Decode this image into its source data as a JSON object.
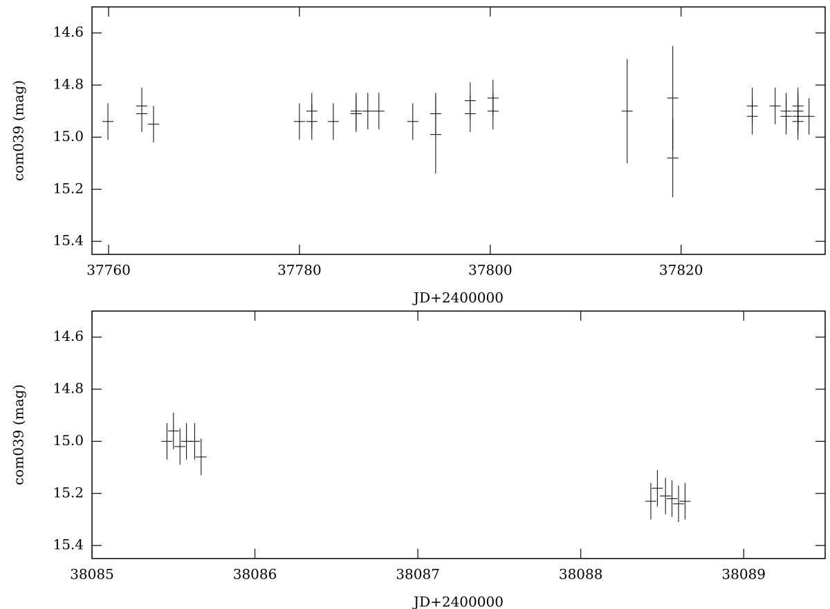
{
  "chart_data": [
    {
      "type": "scatter",
      "xlabel": "JD+2400000",
      "ylabel": "com039  (mag)",
      "x": [
        37759.93,
        37763.48,
        37763.48,
        37764.71,
        37780.0,
        37781.3,
        37781.3,
        37783.55,
        37785.94,
        37785.94,
        37787.17,
        37788.33,
        37791.88,
        37794.28,
        37794.28,
        37797.9,
        37797.9,
        37800.29,
        37800.29,
        37814.35,
        37819.13,
        37819.13,
        37827.46,
        37827.46,
        37829.86,
        37831.01,
        37831.01,
        37832.25,
        37832.25,
        37832.25,
        37832.25,
        37833.41
      ],
      "values": [
        14.94,
        14.88,
        14.91,
        14.95,
        14.94,
        14.9,
        14.94,
        14.94,
        14.9,
        14.91,
        14.9,
        14.9,
        14.94,
        14.91,
        14.99,
        14.86,
        14.91,
        14.85,
        14.9,
        14.9,
        14.85,
        15.08,
        14.88,
        14.92,
        14.88,
        14.9,
        14.92,
        14.88,
        14.9,
        14.92,
        14.94,
        14.92
      ],
      "errors": [
        0.07,
        0.07,
        0.07,
        0.07,
        0.07,
        0.07,
        0.07,
        0.07,
        0.07,
        0.07,
        0.07,
        0.07,
        0.07,
        0.08,
        0.15,
        0.07,
        0.07,
        0.07,
        0.07,
        0.2,
        0.2,
        0.15,
        0.07,
        0.07,
        0.07,
        0.07,
        0.07,
        0.07,
        0.07,
        0.07,
        0.07,
        0.07
      ],
      "color": "#000000",
      "xlim": [
        37758.26,
        37835.1
      ],
      "ylim": [
        15.45,
        14.5
      ],
      "xticks": [
        37760,
        37780,
        37800,
        37820
      ],
      "yticks": [
        14.6,
        14.8,
        {
          "value": 15,
          "label": "15.0"
        },
        15.2,
        15.4
      ]
    },
    {
      "type": "scatter",
      "xlabel": "JD+2400000",
      "ylabel": "com039  (mag)",
      "x": [
        38085.46,
        38085.5,
        38085.54,
        38085.58,
        38085.63,
        38085.67,
        38088.43,
        38088.47,
        38088.52,
        38088.56,
        38088.6,
        38088.64
      ],
      "values": [
        15.0,
        14.96,
        15.02,
        15.0,
        15.0,
        15.06,
        15.23,
        15.18,
        15.21,
        15.22,
        15.24,
        15.23
      ],
      "errors": [
        0.07,
        0.07,
        0.07,
        0.07,
        0.07,
        0.07,
        0.07,
        0.07,
        0.07,
        0.07,
        0.07,
        0.07
      ],
      "color": "#000000",
      "xlim": [
        38085,
        38089.5
      ],
      "ylim": [
        15.45,
        14.5
      ],
      "xticks": [
        38085,
        38086,
        38087,
        38088,
        38089
      ],
      "yticks": [
        14.6,
        14.8,
        {
          "value": 15,
          "label": "15.0"
        },
        15.2,
        15.4
      ]
    }
  ]
}
